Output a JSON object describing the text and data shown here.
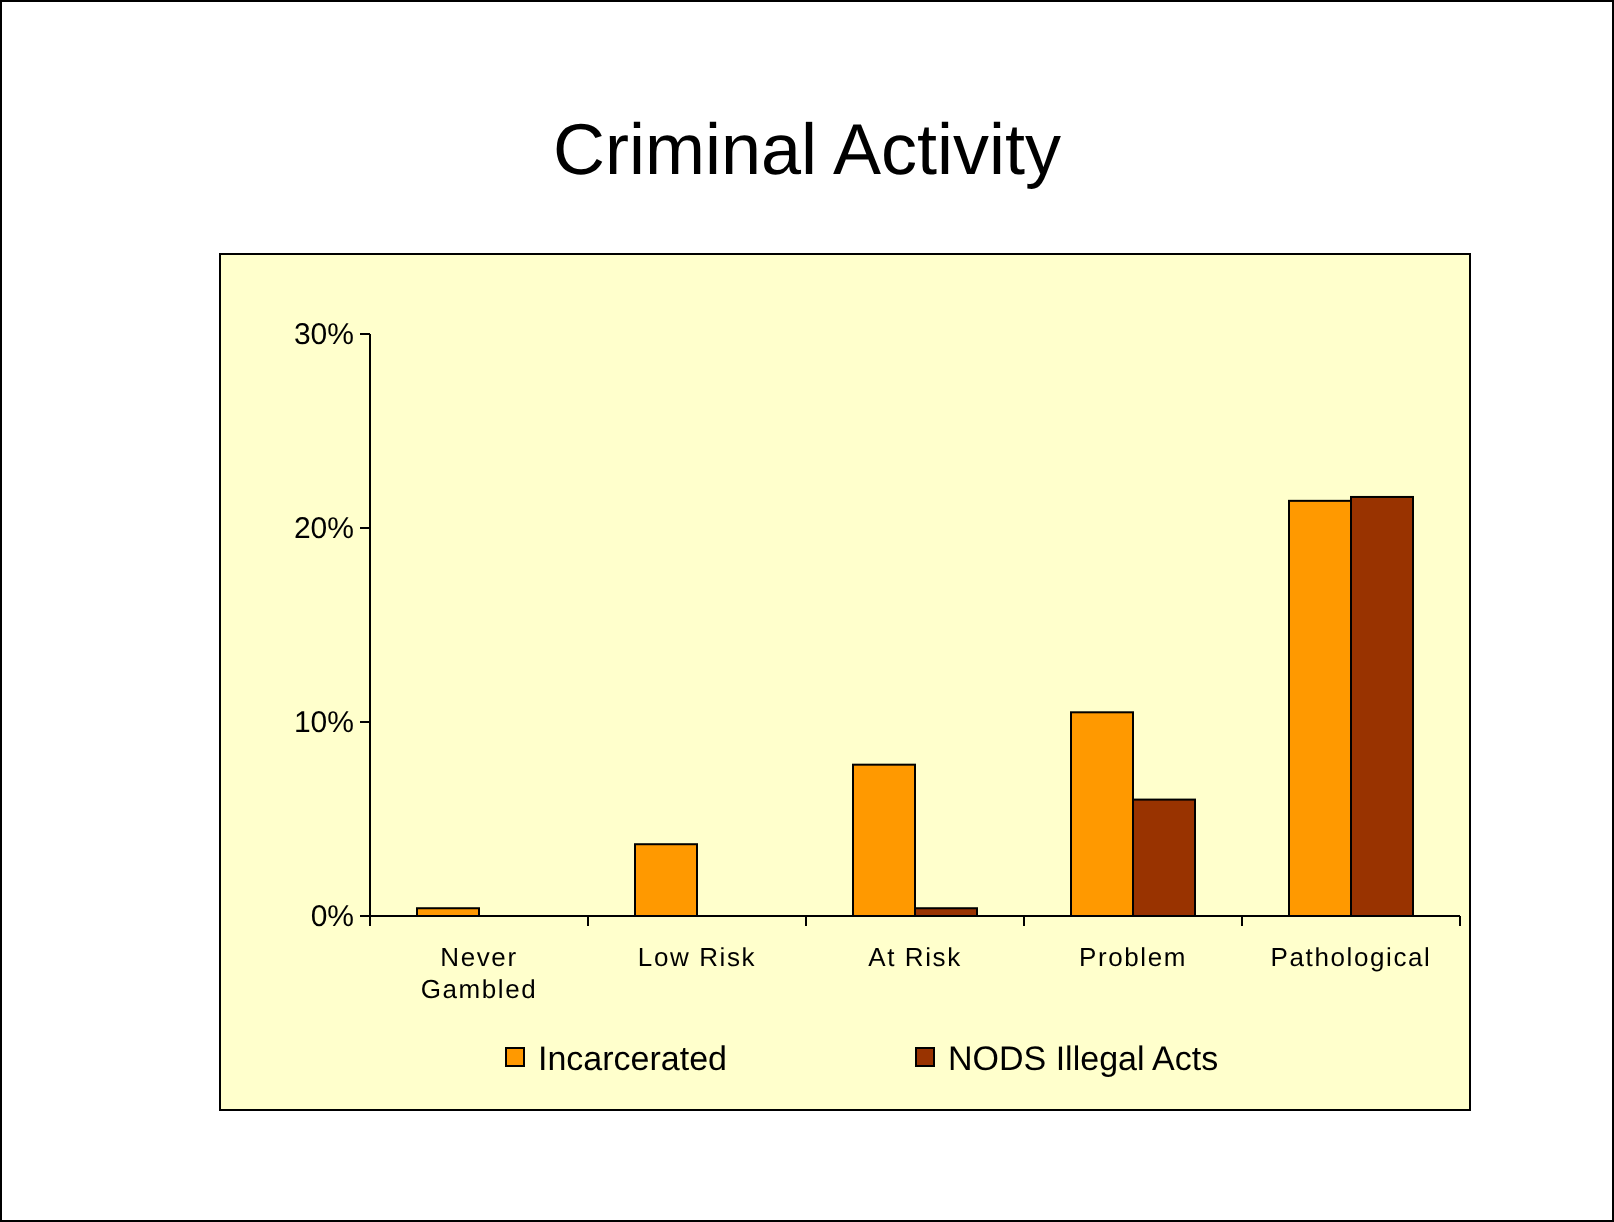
{
  "chart_data": {
    "type": "bar",
    "title": "Criminal Activity",
    "categories": [
      "Never Gambled",
      "Low Risk",
      "At Risk",
      "Problem",
      "Pathological"
    ],
    "series": [
      {
        "name": "Incarcerated",
        "color": "#ff9900",
        "values": [
          0.4,
          3.7,
          7.8,
          10.5,
          21.4
        ]
      },
      {
        "name": "NODS Illegal Acts",
        "color": "#993300",
        "values": [
          null,
          null,
          0.4,
          6.0,
          21.6
        ]
      }
    ],
    "ylim": [
      0,
      30
    ],
    "yticks": [
      {
        "value": 0,
        "label": "0%"
      },
      {
        "value": 10,
        "label": "10%"
      },
      {
        "value": 20,
        "label": "20%"
      },
      {
        "value": 30,
        "label": "30%"
      }
    ],
    "legend": "bottom"
  }
}
